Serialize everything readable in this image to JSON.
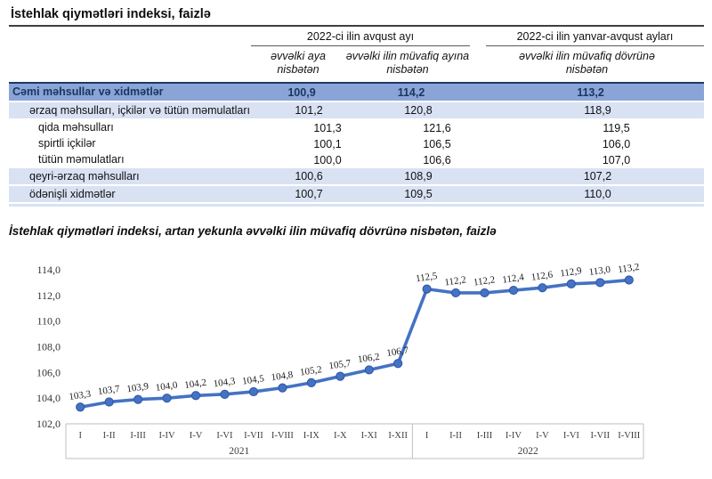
{
  "page": {
    "title": "İstehlak qiymətləri indeksi, faizlə"
  },
  "table": {
    "col_groups": [
      {
        "label": "2022-ci ilin avqust ayı"
      },
      {
        "label": "2022-ci ilin yanvar-avqust ayları"
      }
    ],
    "sub_headers": [
      "əvvəlki aya nisbətən",
      "əvvəlki ilin müvafiq ayına nisbətən",
      "əvvəlki ilin müvafiq dövrünə nisbətən"
    ],
    "rows": [
      {
        "name": "Cəmi məhsullar və xidmətlər",
        "values": [
          "100,9",
          "114,2",
          "113,2"
        ],
        "style": "total",
        "indent": 0
      },
      {
        "name": "ərzaq məhsulları, içkilər və tütün məmulatları",
        "values": [
          "101,2",
          "120,8",
          "118,9"
        ],
        "style": "group",
        "indent": 1
      },
      {
        "name": "qida məhsulları",
        "values": [
          "101,3",
          "121,6",
          "119,5"
        ],
        "style": "plain",
        "indent": 2
      },
      {
        "name": "spirtli içkilər",
        "values": [
          "100,1",
          "106,5",
          "106,0"
        ],
        "style": "plain",
        "indent": 2
      },
      {
        "name": "tütün məmulatları",
        "values": [
          "100,0",
          "106,6",
          "107,0"
        ],
        "style": "plain",
        "indent": 2
      },
      {
        "name": "qeyri-ərzaq məhsulları",
        "values": [
          "100,6",
          "108,9",
          "107,2"
        ],
        "style": "group",
        "indent": 1
      },
      {
        "name": "ödənişli xidmətlər",
        "values": [
          "100,7",
          "109,5",
          "110,0"
        ],
        "style": "group",
        "indent": 1
      }
    ]
  },
  "chart_title": "İstehlak qiymətləri indeksi, artan yekunla əvvəlki ilin müvafiq dövrünə nisbətən, faizlə",
  "chart_data": {
    "type": "line",
    "title": "İstehlak qiymətləri indeksi, artan yekunla əvvəlki ilin müvafiq dövrünə nisbətən, faizlə",
    "categories": [
      "I",
      "I-II",
      "I-III",
      "I-IV",
      "I-V",
      "I-VI",
      "I-VII",
      "I-VIII",
      "I-IX",
      "I-X",
      "I-XI",
      "I-XII",
      "I",
      "I-II",
      "I-III",
      "I-IV",
      "I-V",
      "I-VI",
      "I-VII",
      "I-VIII"
    ],
    "category_groups": [
      {
        "label": "2021",
        "count": 12
      },
      {
        "label": "2022",
        "count": 8
      }
    ],
    "values": [
      103.3,
      103.7,
      103.9,
      104.0,
      104.2,
      104.3,
      104.5,
      104.8,
      105.2,
      105.7,
      106.2,
      106.7,
      112.5,
      112.2,
      112.2,
      112.4,
      112.6,
      112.9,
      113.0,
      113.2
    ],
    "value_labels": [
      "103,3",
      "103,7",
      "103,9",
      "104,0",
      "104,2",
      "104,3",
      "104,5",
      "104,8",
      "105,2",
      "105,7",
      "106,2",
      "106,7",
      "112,5",
      "112,2",
      "112,2",
      "112,4",
      "112,6",
      "112,9",
      "113,0",
      "113,2"
    ],
    "y_tick_labels": [
      "102,0",
      "104,0",
      "106,0",
      "108,0",
      "110,0",
      "112,0",
      "114,0"
    ],
    "y_tick_step": 2,
    "ylim": [
      102,
      114
    ],
    "xlabel": "",
    "ylabel": "",
    "grid": false,
    "legend": "none",
    "line_color": "#4472C4",
    "marker_edge_color": "#2E55A3"
  },
  "colors": {
    "total_row_bg": "#8aa4d7",
    "total_row_text": "#17375E",
    "light_row_bg": "#D9E2F3",
    "dark_top_border": "#1F3864",
    "axis_box_line": "#BFBFBF",
    "line_color": "#4472C4"
  }
}
